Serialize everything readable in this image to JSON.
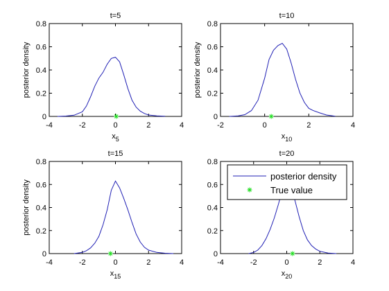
{
  "chart_data": [
    {
      "type": "line",
      "title": "t=5",
      "xlabel": "x",
      "xlabel_sub": "5",
      "ylabel": "posterior density",
      "xlim": [
        -4,
        4
      ],
      "ylim": [
        0,
        0.8
      ],
      "xticks": [
        -4,
        -2,
        0,
        2,
        4
      ],
      "yticks": [
        0,
        0.2,
        0.4,
        0.6,
        0.8
      ],
      "series": [
        {
          "x": [
            -3.5,
            -3,
            -2.5,
            -2,
            -1.75,
            -1.5,
            -1.25,
            -1,
            -0.75,
            -0.5,
            -0.25,
            0,
            0.25,
            0.5,
            0.75,
            1,
            1.25,
            1.5,
            1.75,
            2,
            2.5,
            3
          ],
          "y": [
            0,
            0.003,
            0.01,
            0.04,
            0.09,
            0.17,
            0.26,
            0.33,
            0.38,
            0.45,
            0.5,
            0.51,
            0.47,
            0.36,
            0.24,
            0.14,
            0.08,
            0.045,
            0.025,
            0.012,
            0.004,
            0.001
          ]
        }
      ],
      "true_value": 0.05,
      "colors": {
        "line": "#1f1fb4",
        "marker": "#22dd22"
      }
    },
    {
      "type": "line",
      "title": "t=10",
      "xlabel": "x",
      "xlabel_sub": "10",
      "ylabel": "posterior density",
      "xlim": [
        -2,
        4
      ],
      "ylim": [
        0,
        0.8
      ],
      "xticks": [
        -2,
        0,
        2,
        4
      ],
      "yticks": [
        0,
        0.2,
        0.4,
        0.6,
        0.8
      ],
      "series": [
        {
          "x": [
            -1.6,
            -1.2,
            -0.9,
            -0.6,
            -0.3,
            0,
            0.2,
            0.4,
            0.6,
            0.8,
            1,
            1.2,
            1.4,
            1.6,
            1.8,
            2,
            2.2,
            2.5,
            2.8,
            3.2
          ],
          "y": [
            0,
            0.005,
            0.015,
            0.05,
            0.14,
            0.33,
            0.49,
            0.57,
            0.61,
            0.63,
            0.58,
            0.46,
            0.32,
            0.2,
            0.12,
            0.07,
            0.05,
            0.03,
            0.012,
            0.002
          ]
        }
      ],
      "true_value": 0.3,
      "colors": {
        "line": "#1f1fb4",
        "marker": "#22dd22"
      }
    },
    {
      "type": "line",
      "title": "t=15",
      "xlabel": "x",
      "xlabel_sub": "15",
      "ylabel": "posterior density",
      "xlim": [
        -4,
        4
      ],
      "ylim": [
        0,
        0.8
      ],
      "xticks": [
        -4,
        -2,
        0,
        2,
        4
      ],
      "yticks": [
        0,
        0.2,
        0.4,
        0.6,
        0.8
      ],
      "series": [
        {
          "x": [
            -2.5,
            -2,
            -1.75,
            -1.5,
            -1.25,
            -1,
            -0.75,
            -0.5,
            -0.25,
            0,
            0.25,
            0.5,
            0.75,
            1,
            1.25,
            1.5,
            1.75,
            2,
            2.5,
            3,
            3.5
          ],
          "y": [
            0,
            0.01,
            0.025,
            0.05,
            0.09,
            0.15,
            0.25,
            0.38,
            0.55,
            0.63,
            0.57,
            0.48,
            0.38,
            0.27,
            0.17,
            0.1,
            0.055,
            0.03,
            0.01,
            0.003,
            0
          ]
        }
      ],
      "true_value": -0.3,
      "colors": {
        "line": "#1f1fb4",
        "marker": "#22dd22"
      }
    },
    {
      "type": "line",
      "title": "t=20",
      "xlabel": "x",
      "xlabel_sub": "20",
      "ylabel": "",
      "xlim": [
        -4,
        4
      ],
      "ylim": [
        0,
        0.8
      ],
      "xticks": [
        -4,
        -2,
        0,
        2,
        4
      ],
      "yticks": [
        0,
        0.2,
        0.4,
        0.6,
        0.8
      ],
      "series": [
        {
          "x": [
            -2.3,
            -2,
            -1.75,
            -1.5,
            -1.25,
            -1,
            -0.75,
            -0.5,
            -0.25,
            0,
            0.25,
            0.5,
            0.75,
            1,
            1.25,
            1.5,
            1.75,
            2,
            2.5,
            3
          ],
          "y": [
            0,
            0.01,
            0.03,
            0.07,
            0.13,
            0.21,
            0.31,
            0.43,
            0.56,
            0.64,
            0.6,
            0.46,
            0.32,
            0.2,
            0.12,
            0.07,
            0.04,
            0.02,
            0.005,
            0
          ]
        }
      ],
      "true_value": 0.35,
      "legend": {
        "entries": [
          "posterior density",
          "True value"
        ],
        "placement": "top"
      },
      "colors": {
        "line": "#1f1fb4",
        "marker": "#22dd22"
      }
    }
  ]
}
